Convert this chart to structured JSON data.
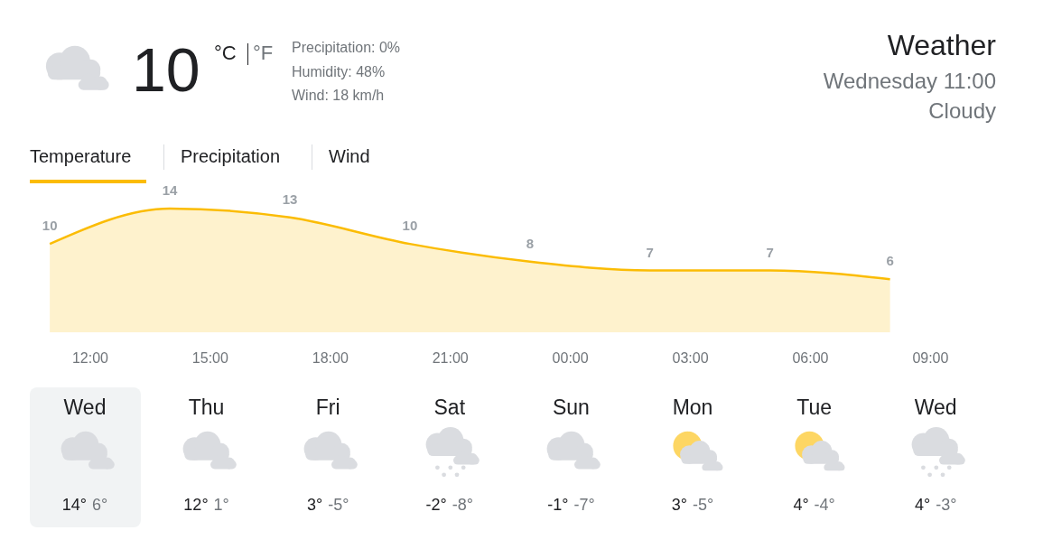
{
  "chart_data": {
    "type": "area",
    "title": "Weather",
    "subtitle": "Wednesday 11:00",
    "x": [
      "--01-03T11:00",
      "--01-03T14:00",
      "--01-03T17:00",
      "--01-03T20:00",
      "--01-03T23:00",
      "--01-04T02:00",
      "--01-04T05:00",
      "--01-04T08:00"
    ],
    "series": [
      {
        "color": "#fbbc04",
        "values": [
          10,
          14,
          13,
          10,
          8,
          7,
          7,
          6
        ]
      }
    ],
    "xlim": [
      "--01-03T10:30",
      "--01-04T10:39"
    ],
    "xticks": [
      {
        "value": "--01-03T12:00",
        "label": "12:00"
      },
      {
        "value": "--01-03T15:00",
        "label": "15:00"
      },
      {
        "value": "--01-03T18:00",
        "label": "18:00"
      },
      {
        "value": "--01-03T21:00",
        "label": "21:00"
      },
      {
        "value": "--01-04T00:00",
        "label": "00:00"
      },
      {
        "value": "--01-04T03:00",
        "label": "03:00"
      },
      {
        "value": "--01-04T06:00",
        "label": "06:00"
      },
      {
        "value": "--01-04T09:00",
        "label": "09:00"
      }
    ],
    "tick_labels": "x",
    "data_labels": true,
    "annotations": [
      "10",
      "°C",
      "°F",
      "Precipitation: 0%",
      "Humidity: 48%",
      "Wind: 18 km/h",
      "Cloudy",
      "Temperature",
      "Precipitation",
      "Wind",
      "Wed",
      "14°",
      "6°",
      "Thu",
      "12°",
      "1°",
      "Fri",
      "3°",
      "-5°",
      "Sat",
      "-2°",
      "-8°",
      "Sun",
      "-1°",
      "-7°",
      "Mon",
      "3°",
      "-5°",
      "Tue",
      "4°",
      "-4°",
      "Wed",
      "4°",
      "-3°"
    ]
  }
}
